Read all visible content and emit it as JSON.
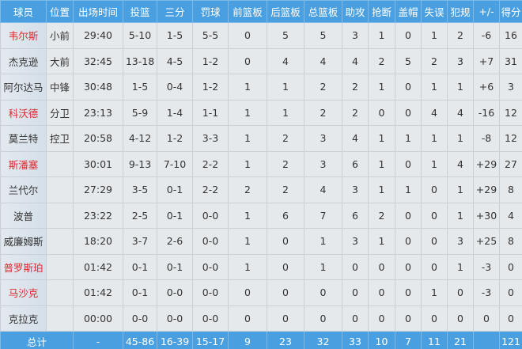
{
  "headers": [
    "球员",
    "位置",
    "出场时间",
    "投篮",
    "三分",
    "罚球",
    "前篮板",
    "后篮板",
    "总篮板",
    "助攻",
    "抢断",
    "盖帽",
    "失误",
    "犯规",
    "+/-",
    "得分"
  ],
  "highlight_color": "#e0282e",
  "header_color": "#4a9fe0",
  "rows": [
    {
      "highlight": true,
      "cells": [
        "韦尔斯",
        "小前",
        "29:40",
        "5-10",
        "1-5",
        "5-5",
        "0",
        "5",
        "5",
        "3",
        "1",
        "0",
        "1",
        "2",
        "-6",
        "16"
      ]
    },
    {
      "highlight": false,
      "cells": [
        "杰克逊",
        "大前",
        "32:45",
        "13-18",
        "4-5",
        "1-2",
        "0",
        "4",
        "4",
        "4",
        "2",
        "5",
        "2",
        "3",
        "+7",
        "31"
      ]
    },
    {
      "highlight": false,
      "cells": [
        "阿尔达马",
        "中锋",
        "30:48",
        "1-5",
        "0-4",
        "1-2",
        "1",
        "1",
        "2",
        "2",
        "1",
        "0",
        "1",
        "1",
        "+6",
        "3"
      ]
    },
    {
      "highlight": true,
      "cells": [
        "科沃德",
        "分卫",
        "23:13",
        "5-9",
        "1-4",
        "1-1",
        "1",
        "1",
        "2",
        "2",
        "0",
        "0",
        "4",
        "4",
        "-16",
        "12"
      ]
    },
    {
      "highlight": false,
      "cells": [
        "莫兰特",
        "控卫",
        "20:58",
        "4-12",
        "1-2",
        "3-3",
        "1",
        "2",
        "3",
        "4",
        "1",
        "1",
        "1",
        "1",
        "-8",
        "12"
      ]
    },
    {
      "highlight": true,
      "cells": [
        "斯潘塞",
        "",
        "30:01",
        "9-13",
        "7-10",
        "2-2",
        "1",
        "2",
        "3",
        "6",
        "1",
        "0",
        "1",
        "4",
        "+29",
        "27"
      ]
    },
    {
      "highlight": false,
      "cells": [
        "兰代尔",
        "",
        "27:29",
        "3-5",
        "0-1",
        "2-2",
        "2",
        "2",
        "4",
        "3",
        "1",
        "1",
        "0",
        "1",
        "+29",
        "8"
      ]
    },
    {
      "highlight": false,
      "cells": [
        "波普",
        "",
        "23:22",
        "2-5",
        "0-1",
        "0-0",
        "1",
        "6",
        "7",
        "6",
        "2",
        "0",
        "0",
        "1",
        "+30",
        "4"
      ]
    },
    {
      "highlight": false,
      "cells": [
        "威廉姆斯",
        "",
        "18:20",
        "3-7",
        "2-6",
        "0-0",
        "1",
        "0",
        "1",
        "3",
        "1",
        "0",
        "0",
        "3",
        "+25",
        "8"
      ]
    },
    {
      "highlight": true,
      "cells": [
        "普罗斯珀",
        "",
        "01:42",
        "0-1",
        "0-1",
        "0-0",
        "1",
        "0",
        "1",
        "0",
        "0",
        "0",
        "0",
        "1",
        "-3",
        "0"
      ]
    },
    {
      "highlight": true,
      "cells": [
        "马沙克",
        "",
        "01:42",
        "0-1",
        "0-0",
        "0-0",
        "0",
        "0",
        "0",
        "0",
        "0",
        "0",
        "1",
        "0",
        "-3",
        "0"
      ]
    },
    {
      "highlight": false,
      "cells": [
        "克拉克",
        "",
        "00:00",
        "0-0",
        "0-0",
        "0-0",
        "0",
        "0",
        "0",
        "0",
        "0",
        "0",
        "0",
        "0",
        "0",
        "0"
      ]
    }
  ],
  "total": [
    "总计",
    "",
    "-",
    "45-86",
    "16-39",
    "15-17",
    "9",
    "23",
    "32",
    "33",
    "10",
    "7",
    "11",
    "21",
    "",
    "121"
  ]
}
